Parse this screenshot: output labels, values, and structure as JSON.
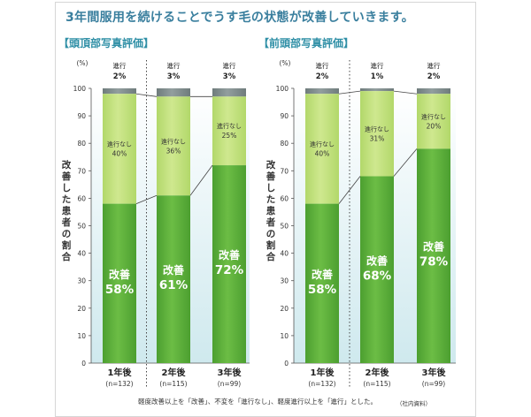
{
  "headline": "3年間服用を続けることでうす毛の状態が改善していきます。",
  "footnote": "軽度改善以上を「改善」、不変を「進行なし」、軽度進行以上を「進行」とした。",
  "source": "（社内資料）",
  "colors": {
    "improved": "#5aae3a",
    "no_progress": "#bfe07a",
    "progressed": "#7d8a8a",
    "accent": "#2f8fa6"
  },
  "chart_data": [
    {
      "type": "bar",
      "stacked": true,
      "title": "【頭頂部写真評価】",
      "ylabel": "改善した患者の割合",
      "yunit": "(%)",
      "ylim": [
        0,
        100
      ],
      "yticks": [
        0,
        10,
        20,
        30,
        40,
        50,
        60,
        70,
        80,
        90,
        100
      ],
      "categories": [
        "1年後",
        "2年後",
        "3年後"
      ],
      "sample_sizes": [
        "(n=132)",
        "(n=115)",
        "(n=99)"
      ],
      "series": [
        {
          "name": "改善",
          "values": [
            58,
            61,
            72
          ],
          "labels": [
            "58%",
            "61%",
            "72%"
          ]
        },
        {
          "name": "進行なし",
          "values": [
            40,
            36,
            25
          ],
          "labels": [
            "40%",
            "36%",
            "25%"
          ]
        },
        {
          "name": "進行",
          "values": [
            2,
            3,
            3
          ],
          "labels": [
            "2%",
            "3%",
            "3%"
          ]
        }
      ]
    },
    {
      "type": "bar",
      "stacked": true,
      "title": "【前頭部写真評価】",
      "ylabel": "改善した患者の割合",
      "yunit": "(%)",
      "ylim": [
        0,
        100
      ],
      "yticks": [
        0,
        10,
        20,
        30,
        40,
        50,
        60,
        70,
        80,
        90,
        100
      ],
      "categories": [
        "1年後",
        "2年後",
        "3年後"
      ],
      "sample_sizes": [
        "(n=132)",
        "(n=115)",
        "(n=99)"
      ],
      "series": [
        {
          "name": "改善",
          "values": [
            58,
            68,
            78
          ],
          "labels": [
            "58%",
            "68%",
            "78%"
          ]
        },
        {
          "name": "進行なし",
          "values": [
            40,
            31,
            20
          ],
          "labels": [
            "40%",
            "31%",
            "20%"
          ]
        },
        {
          "name": "進行",
          "values": [
            2,
            1,
            2
          ],
          "labels": [
            "2%",
            "1%",
            "2%"
          ]
        }
      ]
    }
  ]
}
